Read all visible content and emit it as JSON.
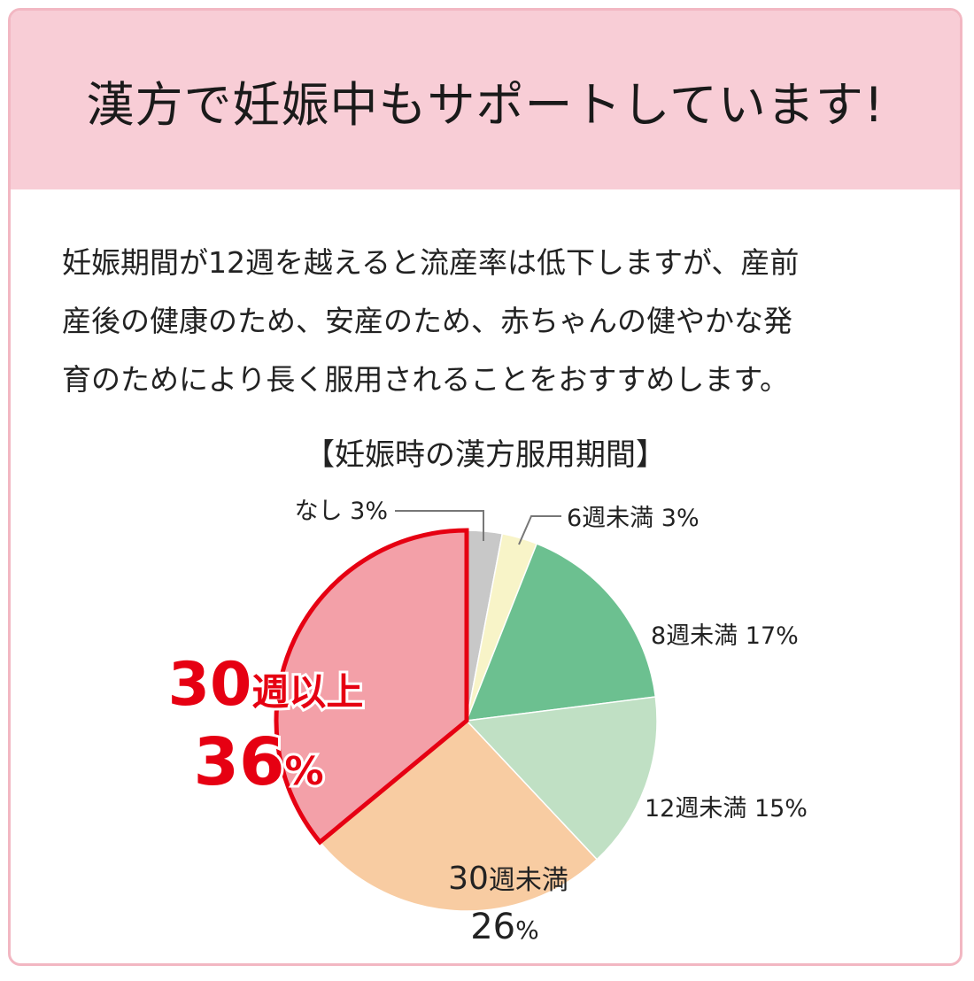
{
  "header": {
    "title": "漢方で妊娠中もサポートしています!"
  },
  "body": {
    "lines": [
      "妊娠期間が12週を越えると流産率は低下しますが、産前",
      "産後の健康のため、安産のため、赤ちゃんの健やかな発",
      "育のためにより長く服用されることをおすすめします。"
    ]
  },
  "chart_data": {
    "type": "pie",
    "title": "【妊娠時の漢方服用期間】",
    "categories": [
      "なし",
      "6週未満",
      "8週未満",
      "12週未満",
      "30週未満",
      "30週以上"
    ],
    "values": [
      3,
      3,
      17,
      15,
      26,
      36
    ],
    "unit": "%",
    "colors": [
      "#c8c8c8",
      "#f8f4c8",
      "#6cc090",
      "#c0e0c4",
      "#f8ccA2",
      "#f3a0a8"
    ],
    "highlight": {
      "index": 5,
      "border_color": "#e60012"
    },
    "labels": [
      {
        "text": "なし 3%"
      },
      {
        "text": "6週未満 3%"
      },
      {
        "text": "8週未満 17%"
      },
      {
        "text": "12週未満 15%"
      },
      {
        "line1_num": "30",
        "line1_text": "週未満",
        "line2_num": "26",
        "line2_unit": "%"
      },
      {
        "line1_num": "30",
        "line1_text": "週以上",
        "line2_num": "36",
        "line2_unit": "%"
      }
    ]
  }
}
